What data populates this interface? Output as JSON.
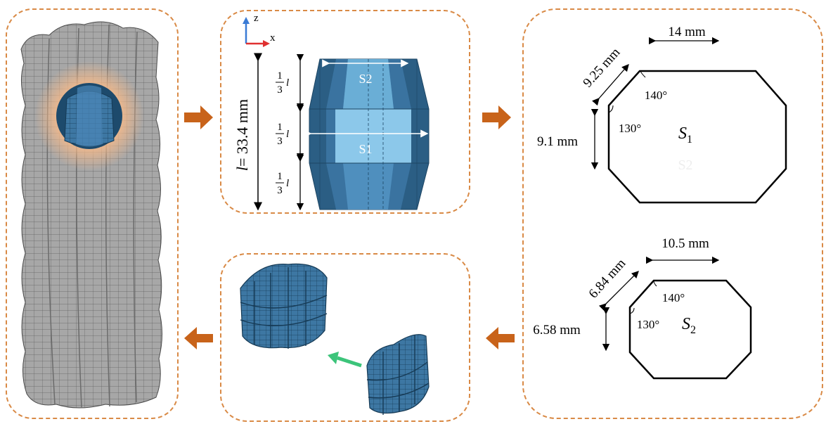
{
  "colors": {
    "panel_border": "#d98a46",
    "arrow": "#c8631a",
    "unit_dark": "#2b5e84",
    "unit_mid": "#3f7eab",
    "unit_light": "#6aaed6",
    "unit_highlight": "#8cc8ea",
    "lattice_gray": "#9a9a9a",
    "green_arrow": "#3cc47a",
    "axis_z": "#3a7bd5",
    "axis_x": "#e03030"
  },
  "axes": {
    "z": "z",
    "x": "x"
  },
  "unit_cell": {
    "height_label": "l = 33.4 mm",
    "height_l": "l",
    "height_value": "= 33.4 mm",
    "fraction_num": "1",
    "fraction_den": "3",
    "fraction_var": "l",
    "section_top": "S2",
    "section_mid": "S1"
  },
  "section_s1": {
    "top_width": "14 mm",
    "chamfer": "9.25 mm",
    "side_height": "9.1 mm",
    "angle_top": "140°",
    "angle_side": "130°",
    "name": "S",
    "subscript": "1",
    "faint_label": "S2"
  },
  "section_s2": {
    "top_width": "10.5 mm",
    "chamfer": "6.84 mm",
    "side_height": "6.58 mm",
    "angle_top": "140°",
    "angle_side": "130°",
    "name": "S",
    "subscript": "2"
  }
}
